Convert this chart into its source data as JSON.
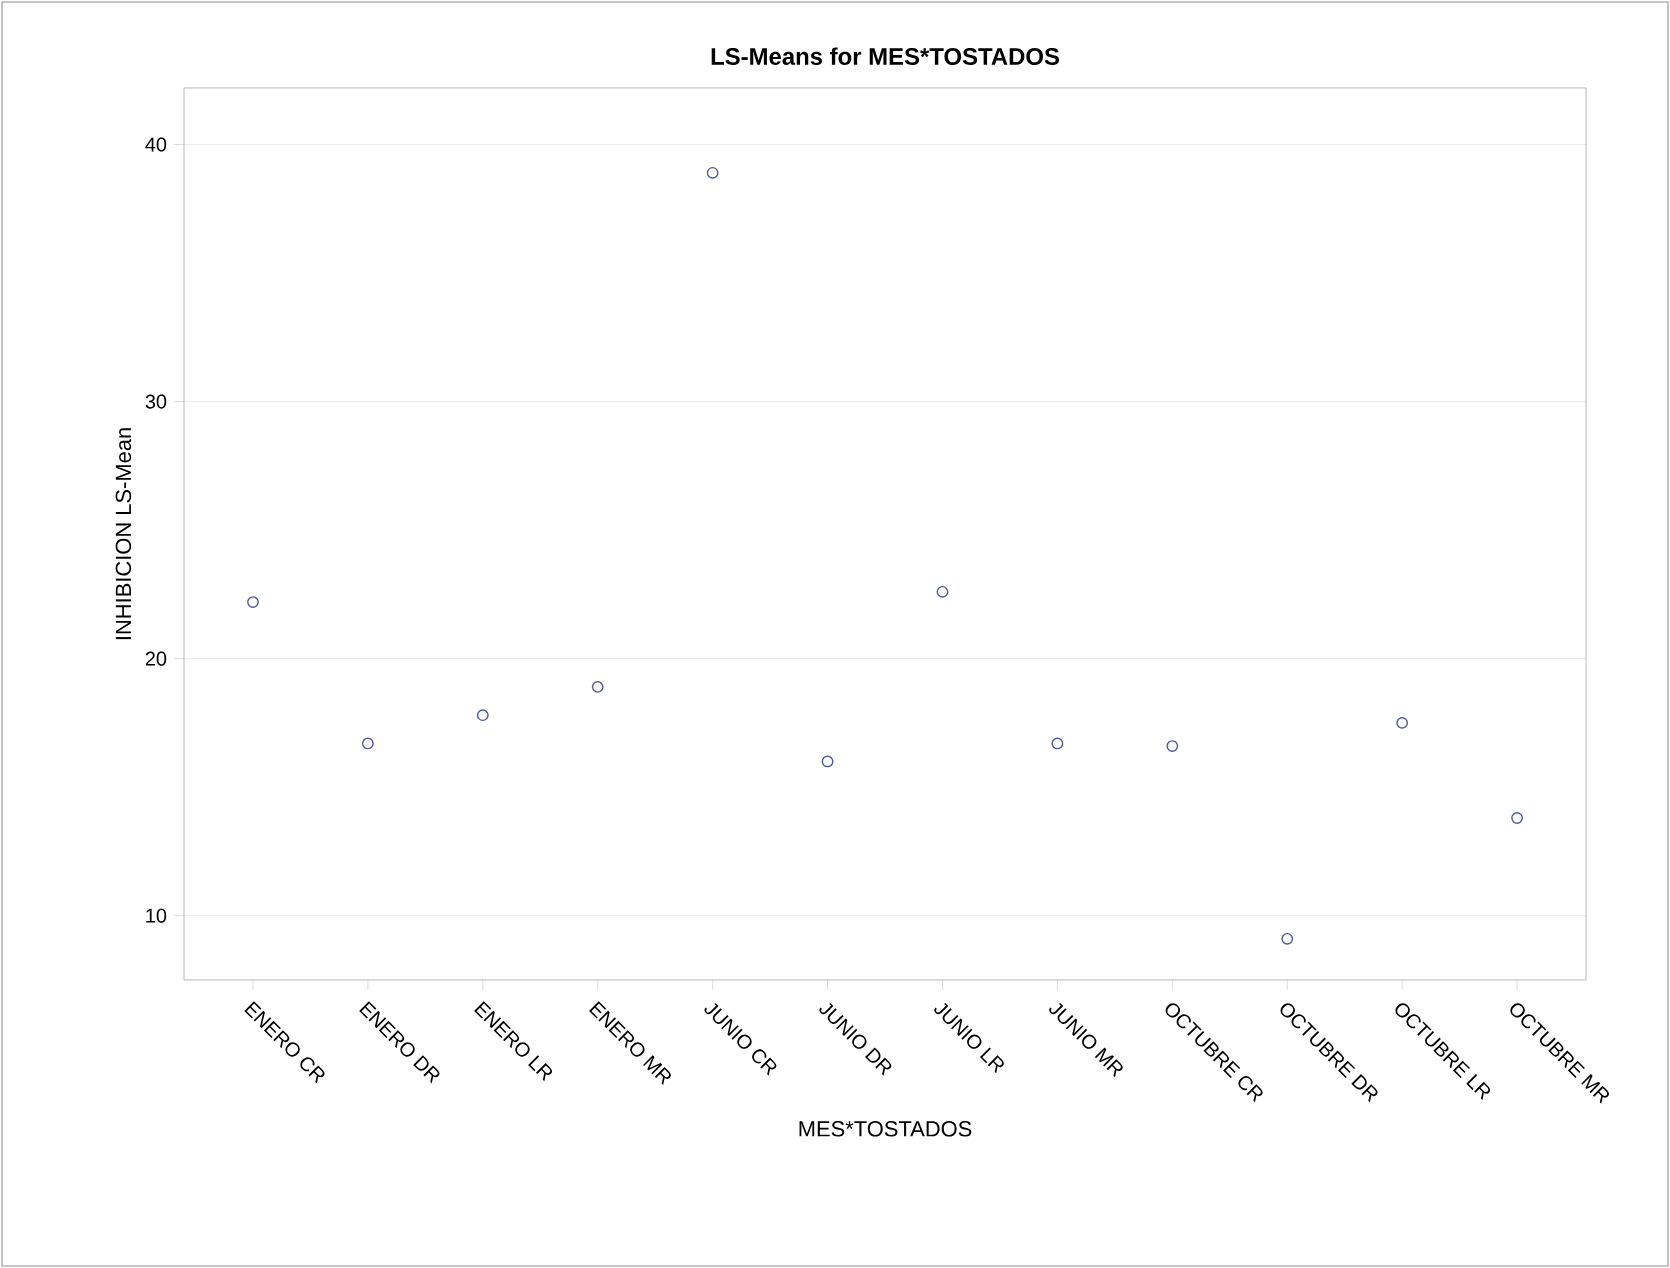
{
  "chart_data": {
    "type": "scatter",
    "title": "LS-Means for MES*TOSTADOS",
    "xlabel": "MES*TOSTADOS",
    "ylabel": "INHIBICION LS-Mean",
    "categories": [
      "ENERO CR",
      "ENERO DR",
      "ENERO LR",
      "ENERO MR",
      "JUNIO CR",
      "JUNIO DR",
      "JUNIO LR",
      "JUNIO MR",
      "OCTUBRE CR",
      "OCTUBRE DR",
      "OCTUBRE LR",
      "OCTUBRE MR"
    ],
    "series": [
      {
        "color": "#4a5a9c",
        "values": [
          22.2,
          16.7,
          17.8,
          18.9,
          38.9,
          16.0,
          22.6,
          16.7,
          16.6,
          9.1,
          17.5,
          13.8
        ]
      }
    ],
    "ylim": [
      7.5,
      42.2
    ],
    "yticks": [
      10,
      20,
      30,
      40
    ],
    "grid": "y",
    "marker": "circle"
  }
}
